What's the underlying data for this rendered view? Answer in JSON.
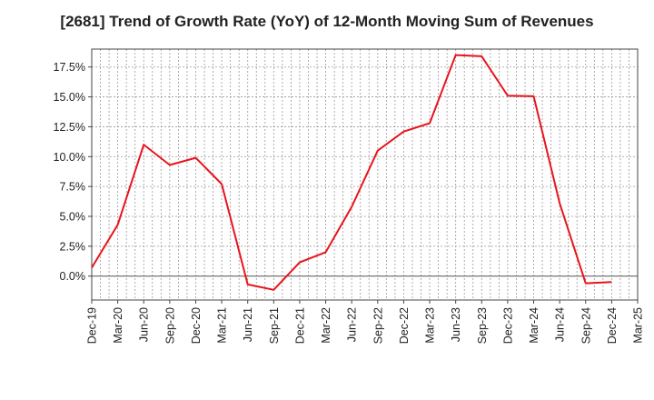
{
  "chart_data": {
    "type": "line",
    "title": "[2681]  Trend of Growth Rate (YoY) of 12-Month Moving Sum of Revenues",
    "xlabel": "",
    "ylabel": "",
    "x_tick_labels": [
      "Dec-19",
      "Mar-20",
      "Jun-20",
      "Sep-20",
      "Dec-20",
      "Mar-21",
      "Jun-21",
      "Sep-21",
      "Dec-21",
      "Mar-22",
      "Jun-22",
      "Sep-22",
      "Dec-22",
      "Mar-23",
      "Jun-23",
      "Sep-23",
      "Dec-23",
      "Mar-24",
      "Jun-24",
      "Sep-24",
      "Dec-24",
      "Mar-25"
    ],
    "y_ticks": [
      0.0,
      2.5,
      5.0,
      7.5,
      10.0,
      12.5,
      15.0,
      17.5
    ],
    "y_tick_labels": [
      "0.0%",
      "2.5%",
      "5.0%",
      "7.5%",
      "10.0%",
      "12.5%",
      "15.0%",
      "17.5%"
    ],
    "ylim": [
      -2.0,
      19.0
    ],
    "grid": true,
    "series": [
      {
        "color": "#e8141c",
        "x": [
          "Dec-19",
          "Mar-20",
          "Jun-20",
          "Sep-20",
          "Dec-20",
          "Mar-21",
          "Jun-21",
          "Sep-21",
          "Dec-21",
          "Mar-22",
          "Jun-22",
          "Sep-22",
          "Dec-22",
          "Mar-23",
          "Jun-23",
          "Sep-23",
          "Dec-23",
          "Mar-24",
          "Jun-24",
          "Sep-24",
          "Dec-24"
        ],
        "values": [
          0.7,
          4.3,
          11.0,
          9.3,
          9.9,
          7.7,
          -0.7,
          -1.15,
          1.15,
          2.0,
          5.8,
          10.5,
          12.1,
          12.8,
          18.5,
          18.4,
          15.1,
          15.05,
          6.1,
          -0.6,
          -0.5
        ]
      }
    ]
  }
}
